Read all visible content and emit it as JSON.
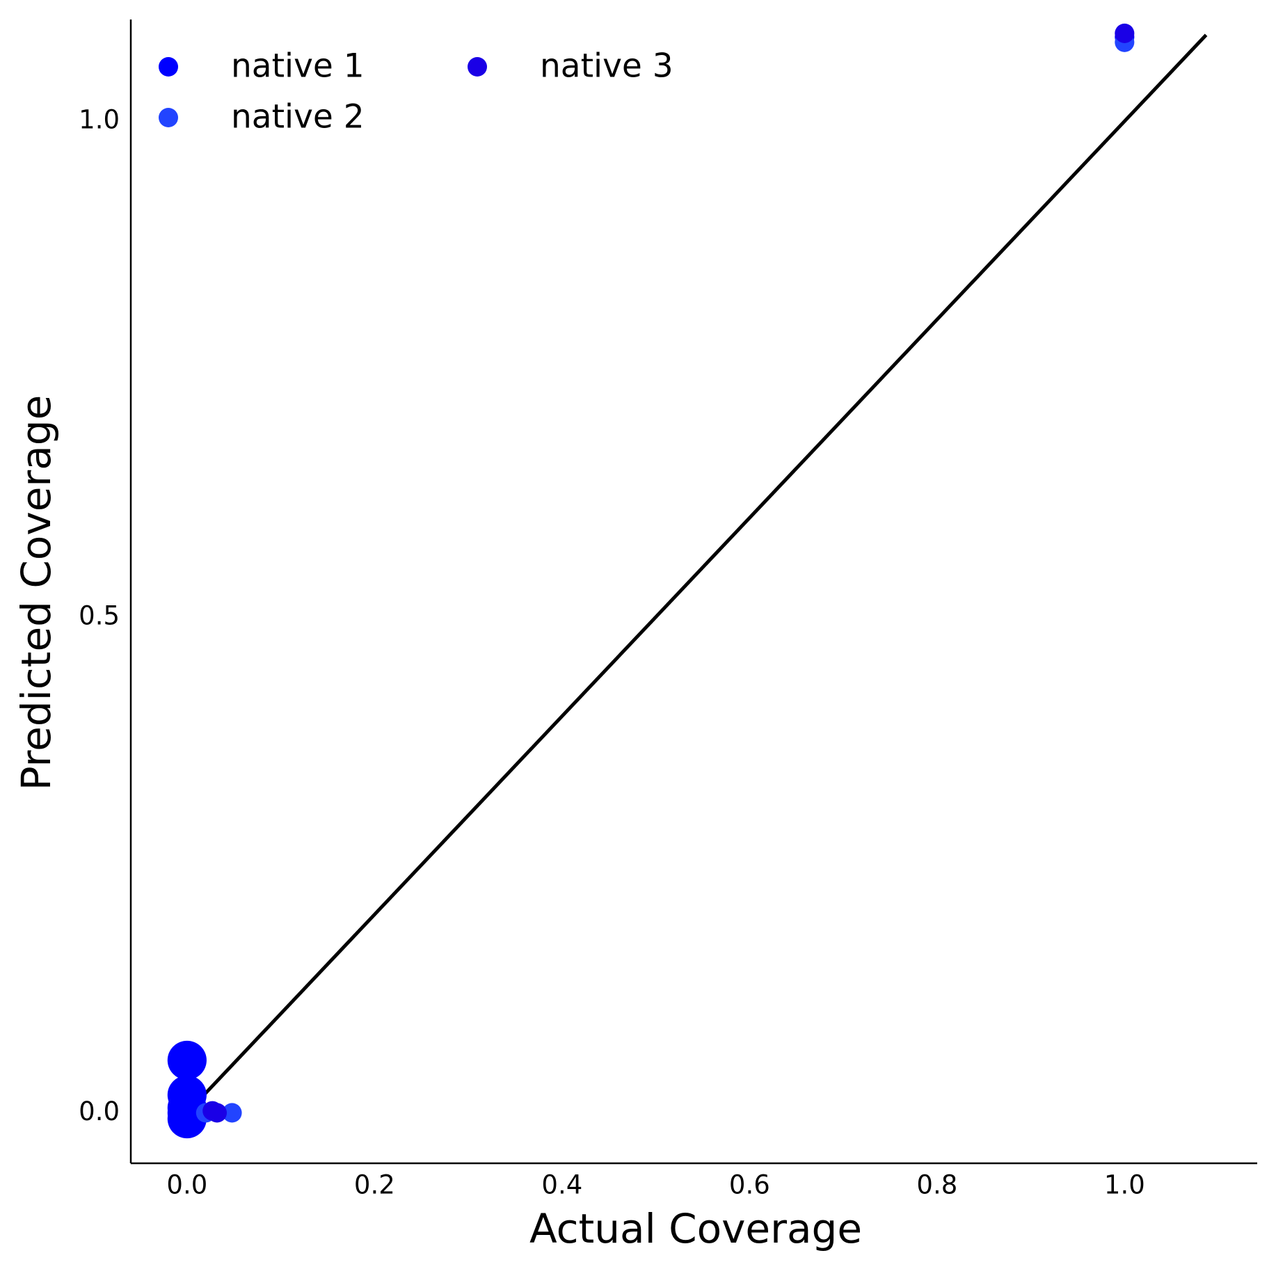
{
  "chart_data": {
    "type": "scatter",
    "x_label": "Actual Coverage",
    "y_label": "Predicted Coverage",
    "xlim": [
      -0.06,
      1.1415
    ],
    "ylim": [
      -0.0509,
      1.1026
    ],
    "xticks": [
      {
        "value": 0,
        "label": "0.0"
      },
      0.2,
      0.4,
      0.6,
      0.8,
      {
        "value": 1,
        "label": "1.0"
      }
    ],
    "yticks": [
      {
        "value": 0,
        "label": "0.0"
      },
      0.5,
      {
        "value": 1,
        "label": "1.0"
      }
    ],
    "grid": false,
    "legend": "upper left",
    "reference_line": {
      "color": "#000000",
      "x": [
        0,
        1.087
      ],
      "y": [
        0,
        1.087
      ]
    },
    "series": [
      {
        "name": "native 1",
        "color": "#0000ff",
        "x": [
          0,
          0,
          0,
          0,
          0,
          1
        ],
        "values": [
          0.053,
          0.018,
          0.005,
          0.0,
          -0.006,
          1.085
        ],
        "sizes": [
          24,
          24,
          24,
          24,
          24,
          12
        ]
      },
      {
        "name": "native 2",
        "color": "#2244ff",
        "x": [
          0.02,
          0.048,
          1
        ],
        "values": [
          0.0,
          0.0,
          1.0796
        ],
        "sizes": [
          12,
          12,
          12
        ]
      },
      {
        "name": "native 3",
        "color": "#1a00e6",
        "x": [
          0.027,
          0.032,
          1
        ],
        "values": [
          0.002,
          0.0,
          1.0886
        ],
        "sizes": [
          12,
          12,
          12
        ]
      }
    ]
  }
}
